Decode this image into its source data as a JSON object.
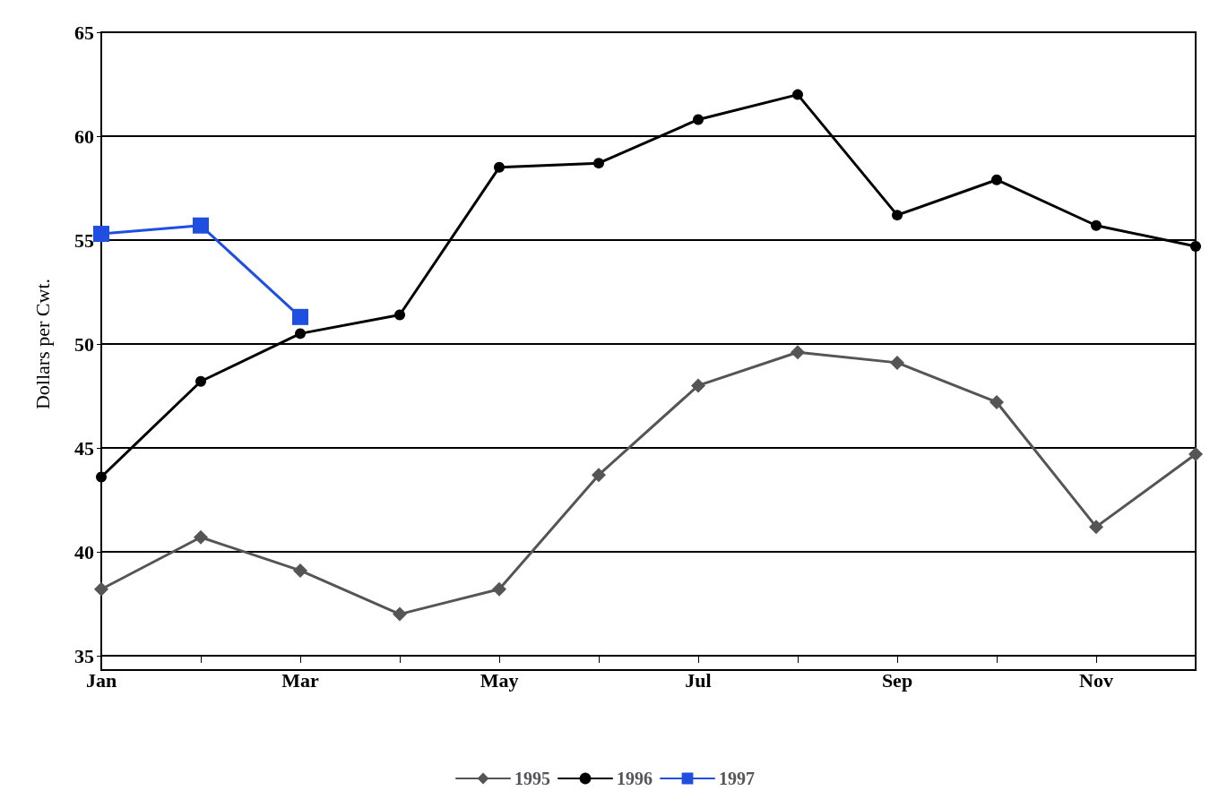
{
  "chart_data": {
    "type": "line",
    "ylabel": "Dollars per Cwt.",
    "categories": [
      "Jan",
      null,
      "Mar",
      null,
      "May",
      null,
      "Jul",
      null,
      "Sep",
      null,
      "Nov",
      null
    ],
    "series": [
      {
        "name": "1995",
        "color": "#555555",
        "marker": "diamond",
        "values": [
          38.2,
          40.7,
          39.1,
          37.0,
          38.2,
          43.7,
          48.0,
          49.6,
          49.1,
          47.2,
          41.2,
          44.7
        ]
      },
      {
        "name": "1996",
        "color": "#000000",
        "marker": "circle",
        "values": [
          43.6,
          48.2,
          50.5,
          51.4,
          58.5,
          58.7,
          60.8,
          62.0,
          56.2,
          57.9,
          55.7,
          54.7
        ]
      },
      {
        "name": "1997",
        "color": "#1f4fe0",
        "marker": "square",
        "values": [
          55.3,
          55.7,
          51.3,
          null,
          null,
          null,
          null,
          null,
          null,
          null,
          null,
          null
        ]
      }
    ],
    "ylim": [
      35,
      65
    ],
    "yticks": [
      35,
      40,
      45,
      50,
      55,
      60,
      65
    ],
    "grid": "y",
    "legend": "bottom",
    "line_style": "solid"
  }
}
